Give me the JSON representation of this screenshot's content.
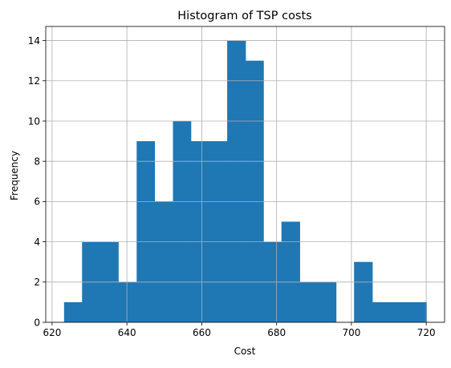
{
  "chart_data": {
    "type": "bar",
    "title": "Histogram of TSP costs",
    "xlabel": "Cost",
    "ylabel": "Frequency",
    "xlim": [
      618.3,
      724.9
    ],
    "ylim": [
      0,
      14.7
    ],
    "xticks": [
      620,
      640,
      660,
      680,
      700,
      720
    ],
    "yticks": [
      0,
      2,
      4,
      6,
      8,
      10,
      12,
      14
    ],
    "grid": true,
    "bar_color": "#1f77b4",
    "bins": [
      {
        "x0": 623.2,
        "x1": 628.0,
        "count": 1
      },
      {
        "x0": 628.0,
        "x1": 632.9,
        "count": 4
      },
      {
        "x0": 632.9,
        "x1": 637.7,
        "count": 4
      },
      {
        "x0": 637.7,
        "x1": 642.6,
        "count": 2
      },
      {
        "x0": 642.6,
        "x1": 647.4,
        "count": 9
      },
      {
        "x0": 647.4,
        "x1": 652.3,
        "count": 6
      },
      {
        "x0": 652.3,
        "x1": 657.1,
        "count": 10
      },
      {
        "x0": 657.1,
        "x1": 662.0,
        "count": 9
      },
      {
        "x0": 662.0,
        "x1": 666.8,
        "count": 9
      },
      {
        "x0": 666.8,
        "x1": 671.7,
        "count": 14
      },
      {
        "x0": 671.7,
        "x1": 676.5,
        "count": 13
      },
      {
        "x0": 676.5,
        "x1": 681.3,
        "count": 4
      },
      {
        "x0": 681.3,
        "x1": 686.2,
        "count": 5
      },
      {
        "x0": 686.2,
        "x1": 691.0,
        "count": 2
      },
      {
        "x0": 691.0,
        "x1": 695.9,
        "count": 2
      },
      {
        "x0": 695.9,
        "x1": 700.7,
        "count": 0
      },
      {
        "x0": 700.7,
        "x1": 705.6,
        "count": 3
      },
      {
        "x0": 705.6,
        "x1": 710.4,
        "count": 1
      },
      {
        "x0": 710.4,
        "x1": 715.3,
        "count": 1
      },
      {
        "x0": 715.3,
        "x1": 720.1,
        "count": 1
      }
    ]
  }
}
